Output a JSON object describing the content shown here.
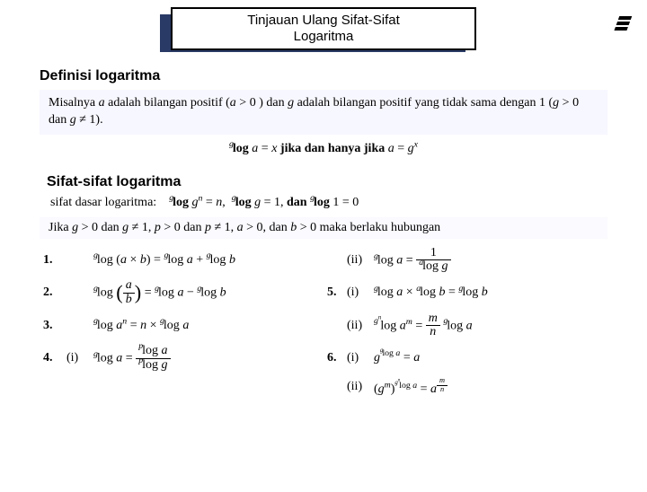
{
  "title": {
    "line1": "Tinjauan Ulang Sifat-Sifat",
    "line2": "Logaritma"
  },
  "section1_heading": "Definisi logaritma",
  "definition_text_html": "Misalnya <i>a</i> adalah bilangan positif (<i>a</i> &gt; 0 ) dan <i>g</i> adalah bilangan positif yang tidak sama dengan 1 (<i>g</i> &gt; 0 dan <i>g</i> ≠ 1).",
  "center_formula_html": "<span class='pre-sup'>g</span><b>log</b> <i>a</i> = <i>x</i> <b>jika dan hanya jika</b> <i>a</i> = <i>g</i><sup><i>x</i></sup>",
  "section2_heading": "Sifat-sifat logaritma",
  "sifat_dasar_label": "sifat dasar logaritma:",
  "sifat_dasar_html": "<span class='pre-sup'>g</span><b>log</b> <i>g</i><sup><i>n</i></sup> = <i>n</i>, &nbsp;<span class='pre-sup'>g</span><b>log</b> <i>g</i> = 1, <b>dan</b> <span class='pre-sup'>g</span><b>log</b> 1 = 0",
  "condition_html": "Jika <i>g</i> &gt; 0 dan <i>g</i> ≠ 1, <i>p</i> &gt; 0 dan <i>p</i> ≠ 1, <i>a</i> &gt; 0, dan <i>b</i> &gt; 0 maka berlaku hubungan",
  "props": {
    "p1_html": "<span class='pre-sup'>g</span>log (<i>a</i> × <i>b</i>) = <span class='pre-sup'>g</span>log <i>a</i> + <span class='pre-sup'>g</span>log <i>b</i>",
    "p2_html": "<span class='pre-sup'>g</span>log <span class='bigparen'>(</span><span class='frac'><span class='top'><i>a</i></span><span class='bot'><i>b</i></span></span><span class='bigparen'>)</span> = <span class='pre-sup'>g</span>log <i>a</i> − <span class='pre-sup'>g</span>log <i>b</i>",
    "p3_html": "<span class='pre-sup'>g</span>log <i>a</i><sup><i>n</i></sup> = <i>n</i> × <span class='pre-sup'>g</span>log <i>a</i>",
    "p4i_html": "<span class='pre-sup'>g</span>log <i>a</i> = <span class='frac'><span class='top'><span class='pre-sup'>p</span>log <i>a</i></span><span class='bot'><span class='pre-sup'>p</span>log <i>g</i></span></span>",
    "p4ii_html": "<span class='pre-sup'>g</span>log <i>a</i> = <span class='frac'><span class='top'>1</span><span class='bot'><span class='pre-sup'>a</span>log <i>g</i></span></span>",
    "p5i_html": "<span class='pre-sup'>g</span>log <i>a</i> × <span class='pre-sup'>a</span>log <i>b</i> = <span class='pre-sup'>g</span>log <i>b</i>",
    "p5ii_html": "<span class='pre-sup'>g<sup>n</sup></span>log <i>a</i><sup><i>m</i></sup> = <span class='frac'><span class='top'><i>m</i></span><span class='bot'><i>n</i></span></span> <span class='pre-sup'>g</span>log <i>a</i>",
    "p6i_html": "<i>g</i><sup><span class='pre-sup'>g</span>log <i>a</i></sup> = <i>a</i>",
    "p6ii_html": "(<i>g</i><sup><i>m</i></sup>)<sup><span class='pre-sup'>g<sup>n</sup></span>log <i>a</i></sup> = <i>a</i><sup><span class='frac' style='font-size:0.85em'><span class='top'><i>m</i></span><span class='bot'><i>n</i></span></span></sup>"
  },
  "labels": {
    "n1": "1.",
    "n2": "2.",
    "n3": "3.",
    "n4": "4.",
    "n5": "5.",
    "n6": "6.",
    "i": "(i)",
    "ii": "(ii)"
  },
  "colors": {
    "title_shadow": "#2a3a66",
    "box_bg": "#f7f7ff",
    "background": "#ffffff"
  }
}
